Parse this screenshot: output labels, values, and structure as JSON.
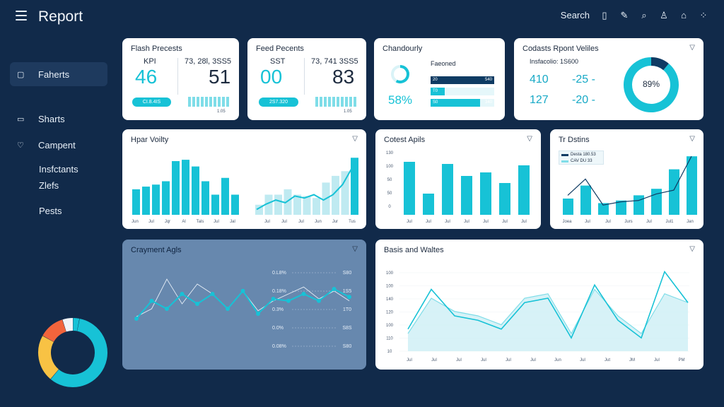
{
  "app": {
    "title": "Report"
  },
  "topbar": {
    "search_label": "Search",
    "icons": [
      "chart-icon",
      "pen-icon",
      "search-icon",
      "user-icon",
      "home-icon",
      "grid-icon"
    ]
  },
  "sidebar": {
    "items": [
      {
        "label": "Faherts",
        "icon": "file-icon",
        "active": true
      },
      {
        "label": "Sharts",
        "icon": "card-icon",
        "active": false
      },
      {
        "label": "Campent",
        "icon": "heart-icon",
        "active": false
      }
    ],
    "sub_items": [
      "Insfctants",
      "Zlefs",
      "Pests"
    ],
    "donut": {
      "values": [
        58,
        22,
        12,
        5,
        3
      ],
      "colors": [
        "#17c2d6",
        "#f8c244",
        "#f2643c",
        "#f1f5f9",
        "#17c2d6"
      ]
    }
  },
  "cards": {
    "flash": {
      "title": "Flash Precests",
      "kpi_label": "KPI",
      "kpi_value": "46",
      "meta": "73, 28l, 3SS5",
      "value2": "51",
      "pill": "CI.8.4IS",
      "tiny": "1.05"
    },
    "feed": {
      "title": "Feed Pecents",
      "kpi_label": "SST",
      "kpi_value": "00",
      "meta": "73, 741 3SS5",
      "value2": "83",
      "pill": "2S7.320",
      "tiny": "1.05"
    },
    "chandourly": {
      "title": "Chandourly",
      "percent": "58%",
      "legend_title": "Faeoned",
      "gauge": 0.58,
      "bars": [
        {
          "left": "20",
          "right": "540",
          "value": 1.0,
          "dark": true
        },
        {
          "left": "T0",
          "right": "",
          "value": 0.22,
          "dark": false
        },
        {
          "left": "S0",
          "right": "340",
          "value": 0.78,
          "dark": false
        }
      ]
    },
    "codasts": {
      "title": "Codasts Rpont Veliles",
      "subtitle": "Insfacolio: 1S600",
      "rows": [
        {
          "a": "410",
          "b": "-25 -"
        },
        {
          "a": "127",
          "b": "-20 -"
        }
      ],
      "donut_label": "89%",
      "donut_value": 0.89
    },
    "hpar": {
      "title": "Hpar Voilty",
      "bars": [
        38,
        42,
        45,
        50,
        80,
        82,
        72,
        50,
        30,
        55,
        30
      ],
      "x_labels": [
        "Jun",
        "Jul",
        "Jqr",
        "Al",
        "Tals",
        "Jul",
        "Jal"
      ],
      "line2_bars": [
        15,
        30,
        30,
        38,
        30,
        28,
        25,
        48,
        58,
        65,
        85
      ],
      "line2": [
        8,
        16,
        22,
        18,
        28,
        25,
        30,
        22,
        30,
        45,
        70
      ],
      "x_labels2": [
        "Jul",
        "Jul",
        "Jul",
        "Jun",
        "Jur",
        "Tus"
      ]
    },
    "cotest": {
      "title": "Cotest Apils",
      "y_labels": [
        "130",
        "100",
        "50",
        "50",
        "0"
      ],
      "bars": [
        75,
        30,
        72,
        55,
        60,
        45,
        70
      ],
      "x_labels": [
        "Jul",
        "Jul",
        "Jul",
        "Jul",
        "Jul",
        "Jul",
        "Jul"
      ]
    },
    "tr": {
      "title": "Tr Dstins",
      "legend": [
        "Desta 180.53",
        "CAV  DU 33"
      ],
      "bars": [
        25,
        45,
        18,
        22,
        30,
        40,
        70,
        90
      ],
      "line": [
        30,
        55,
        15,
        20,
        22,
        32,
        38,
        90
      ],
      "x_labels": [
        "Joea",
        "Jul",
        "Jul",
        "Jurs",
        "Jul",
        "Jul1",
        "Jan"
      ]
    },
    "crayment": {
      "title": "Crayment Agls",
      "y_labels": [
        "0.L8%",
        "0.18%",
        "0.3%",
        "0.0%",
        "0.08%"
      ],
      "right_labels": [
        "S80",
        "1S5",
        "1T0",
        "S8S",
        "S80"
      ],
      "line1": [
        20,
        38,
        30,
        45,
        35,
        45,
        30,
        48,
        25,
        40,
        38,
        45,
        38,
        50,
        42
      ],
      "line2": [
        22,
        30,
        60,
        35,
        55,
        45,
        30,
        48,
        28,
        38,
        45,
        52,
        40,
        48,
        38
      ]
    },
    "basis": {
      "title": "Basis and Waltes",
      "y_labels": [
        "100",
        "100",
        "140",
        "120",
        "100",
        "110",
        "10"
      ],
      "x_labels": [
        "Jul",
        "Jul",
        "Jul",
        "Jul",
        "Jul",
        "Jul",
        "Jun",
        "Jul",
        "Jut",
        "JM",
        "Jul",
        "PM"
      ],
      "area": [
        20,
        60,
        45,
        40,
        30,
        60,
        65,
        20,
        70,
        40,
        20,
        65,
        55
      ],
      "line": [
        25,
        70,
        40,
        35,
        25,
        55,
        60,
        15,
        75,
        35,
        15,
        90,
        55
      ]
    }
  },
  "colors": {
    "accent": "#17c2d6",
    "accent_dark": "#0f3b63",
    "bg": "#112a4a",
    "panel_blue": "#6788ae"
  }
}
